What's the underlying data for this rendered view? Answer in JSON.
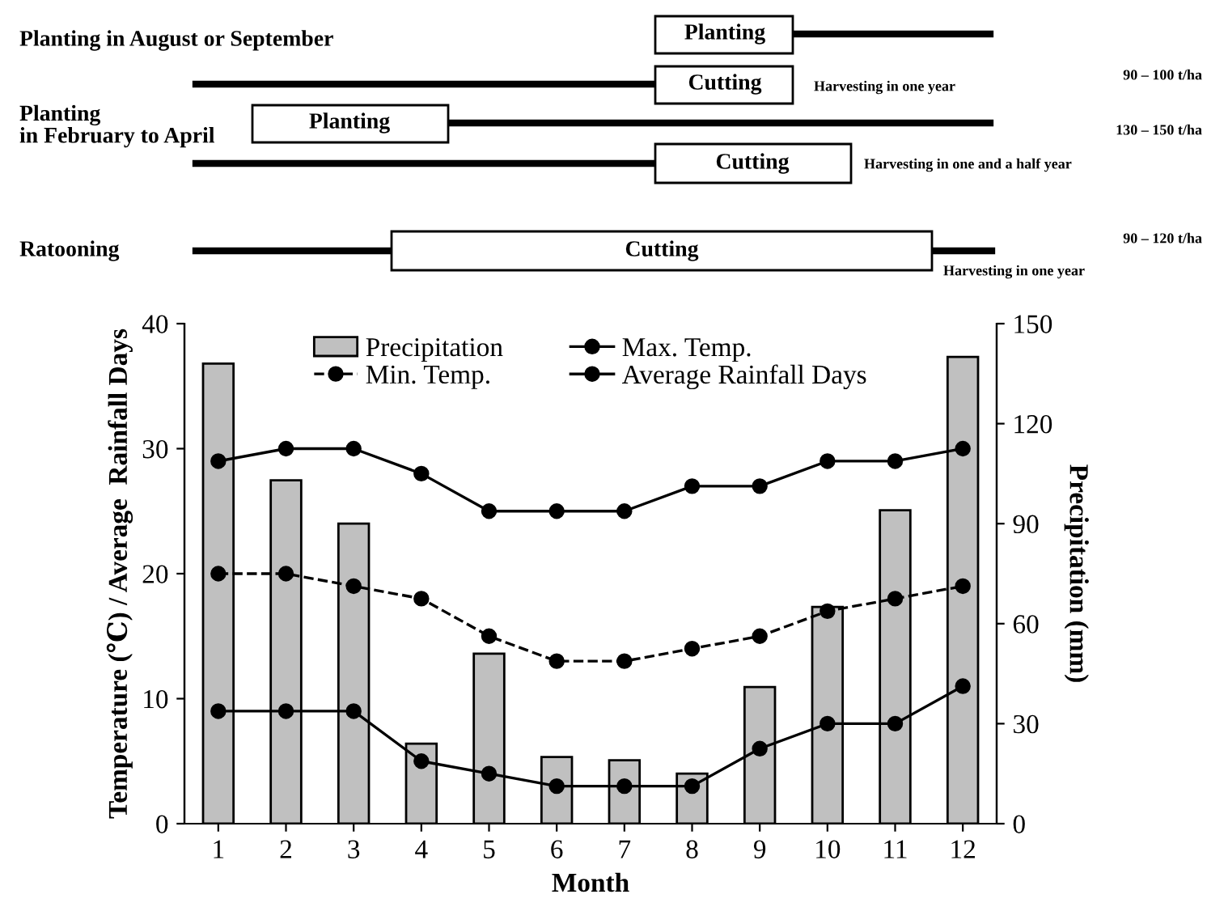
{
  "chart_data": [
    {
      "type": "other",
      "annotations": [
        "Planting in August or September",
        "Planting",
        "Cutting",
        "Harvesting in one year",
        "90 – 100 t/ha",
        "Planting\nin February to April",
        "Planting",
        "130 – 150 t/ha",
        "Cutting",
        "Harvesting in one and a half year",
        "Ratooning",
        "Cutting",
        "90 – 120 t/ha",
        "Harvesting in one year"
      ]
    },
    {
      "type": "bar",
      "categories": [
        "1",
        "2",
        "3",
        "4",
        "5",
        "6",
        "7",
        "8",
        "9",
        "10",
        "11",
        "12"
      ],
      "xlabel": "Month",
      "ylabel": "Temperature (℃) / Average  Rainfall Days",
      "y2label": "Precipitation (mm)",
      "ylim": [
        0,
        40
      ],
      "yticks": [
        0,
        10,
        20,
        30,
        40
      ],
      "y2lim": [
        0,
        150
      ],
      "y2ticks": [
        0,
        30,
        60,
        90,
        120,
        150
      ],
      "grid": false,
      "legend": "top",
      "series": [
        {
          "name": "Precipitation",
          "type": "bar",
          "axis": "y2",
          "color": "#c0c0c0",
          "values": [
            138,
            103,
            90,
            24,
            51,
            20,
            19,
            15,
            41,
            65,
            94,
            140
          ]
        },
        {
          "name": "Min. Temp.",
          "type": "line",
          "color": "#000000",
          "marker": "circle",
          "line_style": "dashed",
          "values": [
            20,
            20,
            19,
            18,
            15,
            13,
            13,
            14,
            15,
            17,
            18,
            19
          ]
        },
        {
          "name": "Max. Temp.",
          "type": "line",
          "color": "#000000",
          "marker": "circle",
          "line_style": "solid",
          "values": [
            29,
            30,
            30,
            28,
            25,
            25,
            25,
            27,
            27,
            29,
            29,
            30
          ]
        },
        {
          "name": "Average Rainfall Days",
          "type": "line",
          "color": "#000000",
          "marker": "circle",
          "line_style": "solid",
          "values": [
            9,
            9,
            9,
            5,
            4,
            3,
            3,
            3,
            6,
            8,
            8,
            11
          ]
        }
      ]
    }
  ]
}
